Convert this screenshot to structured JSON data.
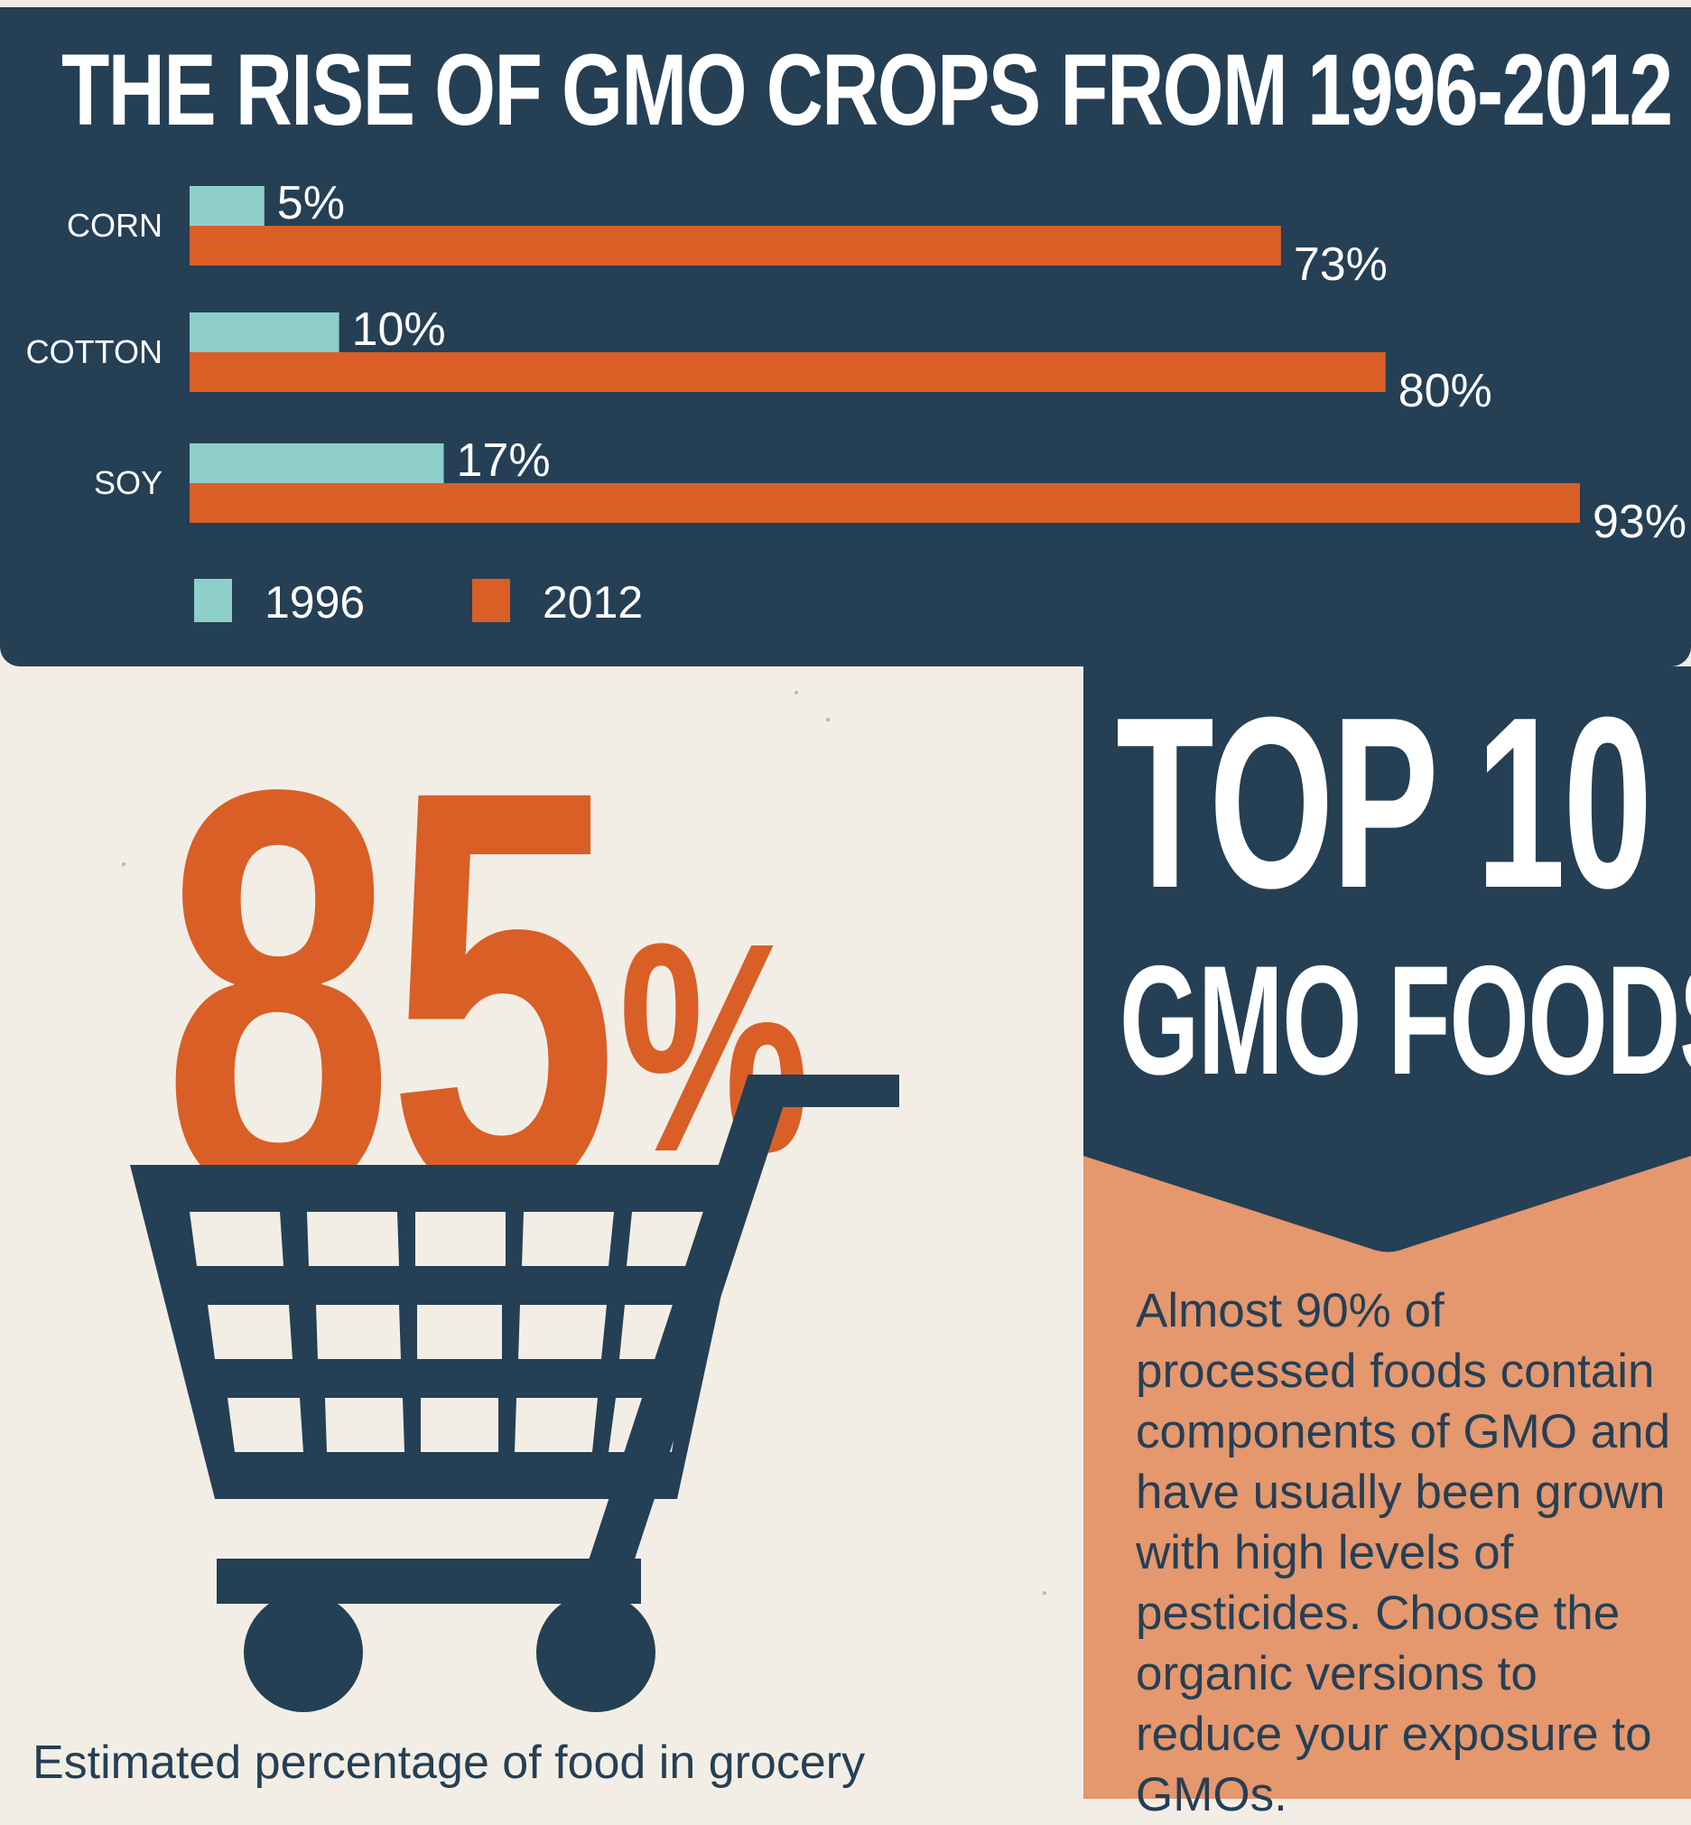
{
  "chart_data": {
    "type": "bar",
    "orientation": "horizontal",
    "title": "THE RISE OF GMO CROPS FROM 1996-2012",
    "categories": [
      "CORN",
      "COTTON",
      "SOY"
    ],
    "series": [
      {
        "name": "1996",
        "values": [
          5,
          10,
          17
        ],
        "labels": [
          "5%",
          "10%",
          "17%"
        ],
        "color": "#8ecfca"
      },
      {
        "name": "2012",
        "values": [
          73,
          80,
          93
        ],
        "labels": [
          "73%",
          "80%",
          "93%"
        ],
        "color": "#d95f26"
      }
    ],
    "unit": "%",
    "xlim": [
      0,
      93
    ],
    "grid": false,
    "legend": "bottom-left"
  },
  "stat": {
    "number": "85",
    "percent_sign": "%",
    "caption": "Estimated percentage of food in grocery"
  },
  "side_card": {
    "title_line1": "TOP 10",
    "title_line2": "GMO FOODS",
    "body": "Almost 90% of processed foods contain components of GMO and have usually been grown with high levels of pesticides. Choose the organic versions to reduce your exposure to GMOs."
  },
  "colors": {
    "navy": "#253f55",
    "orange": "#d95f26",
    "teal": "#8ecfca",
    "peach": "#e5976d",
    "paper": "#f2eee6"
  },
  "icons": [
    "shopping-cart-icon"
  ]
}
